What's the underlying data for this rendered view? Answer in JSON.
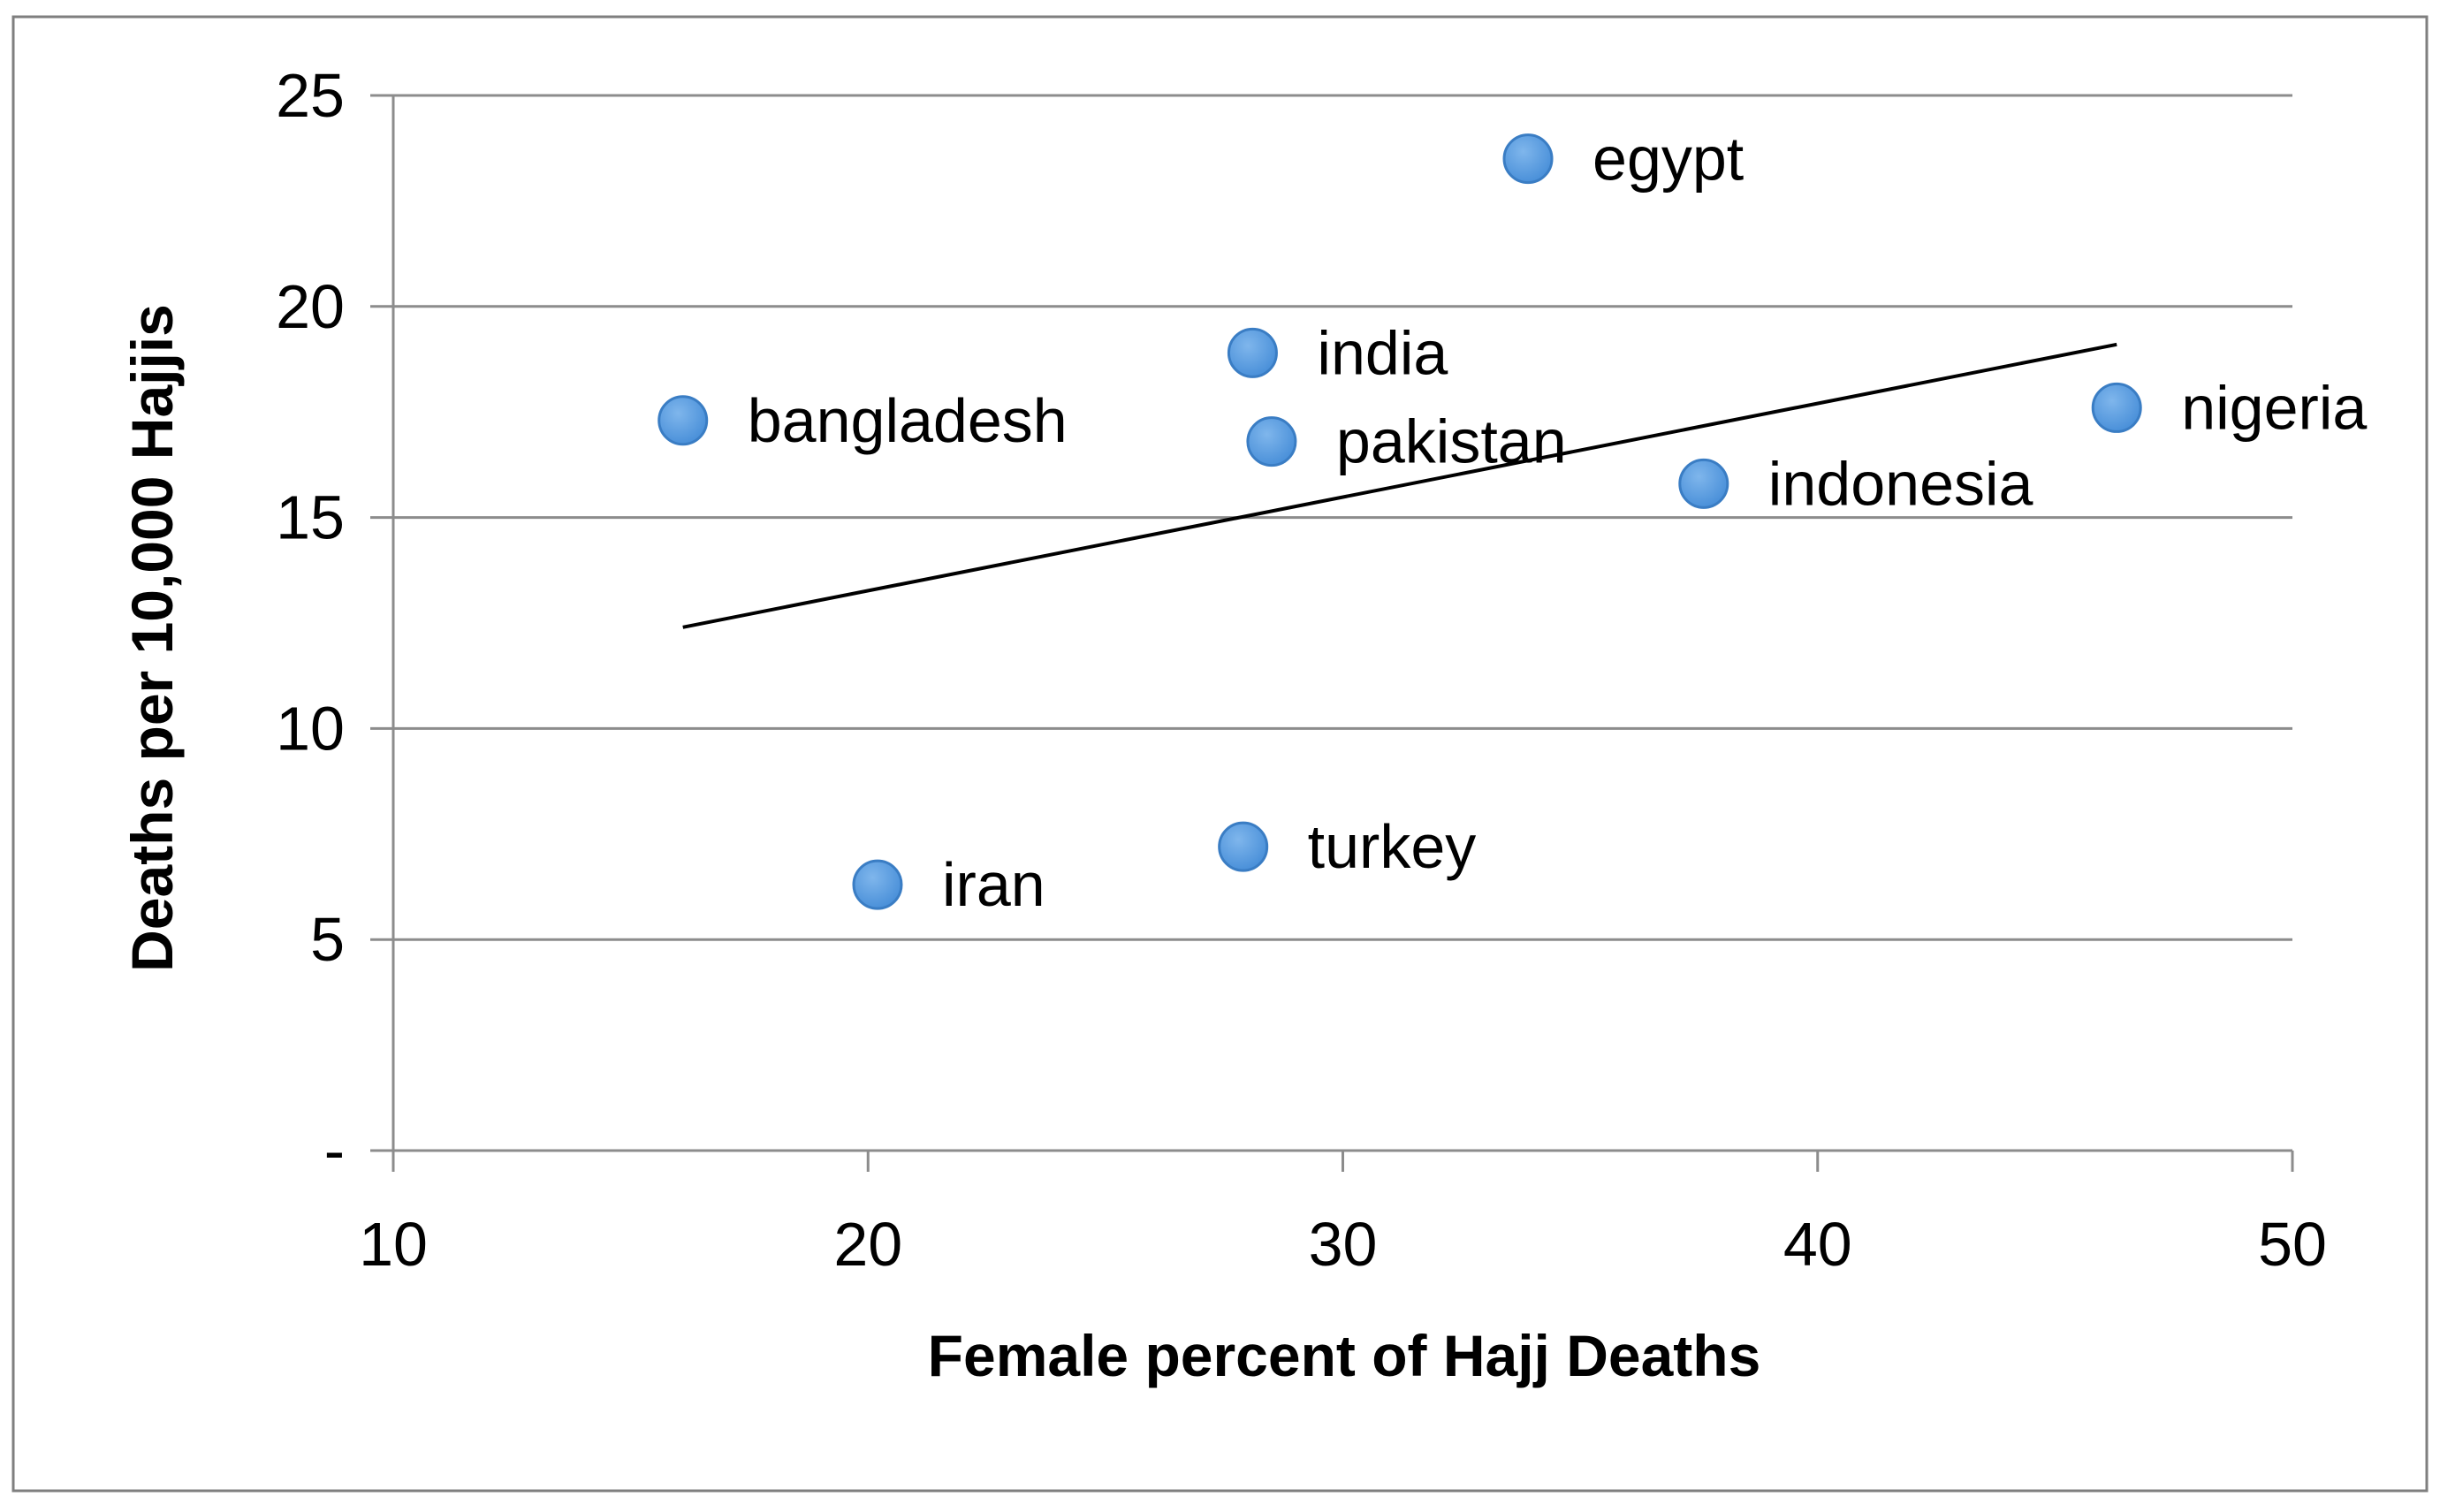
{
  "chart_data": {
    "type": "scatter",
    "title": "",
    "xlabel": "Female percent of Hajj Deaths",
    "ylabel": "Deaths per 10,000 Hajjis",
    "xlim": [
      10,
      50
    ],
    "ylim": [
      0,
      25
    ],
    "x_ticks": [
      10,
      20,
      30,
      40,
      50
    ],
    "x_tick_labels": [
      "10",
      "20",
      "30",
      "40",
      "50"
    ],
    "y_ticks": [
      0,
      5,
      10,
      15,
      20,
      25
    ],
    "y_tick_labels": [
      "-",
      "5",
      "10",
      "15",
      "20",
      "25"
    ],
    "grid": {
      "horizontal": true,
      "vertical": false
    },
    "legend": "none",
    "marker_color": "#4a90d9",
    "trendline": {
      "type": "linear",
      "color": "#000000",
      "x": [
        16.1,
        46.3
      ],
      "y": [
        12.4,
        19.1
      ]
    },
    "points": [
      {
        "label": "egypt",
        "x": 33.9,
        "y": 23.5
      },
      {
        "label": "india",
        "x": 28.1,
        "y": 18.9
      },
      {
        "label": "bangladesh",
        "x": 16.1,
        "y": 17.3
      },
      {
        "label": "pakistan",
        "x": 28.5,
        "y": 16.8
      },
      {
        "label": "nigeria",
        "x": 46.3,
        "y": 17.6
      },
      {
        "label": "indonesia",
        "x": 37.6,
        "y": 15.8
      },
      {
        "label": "turkey",
        "x": 27.9,
        "y": 7.2
      },
      {
        "label": "iran",
        "x": 20.2,
        "y": 6.3
      }
    ]
  }
}
